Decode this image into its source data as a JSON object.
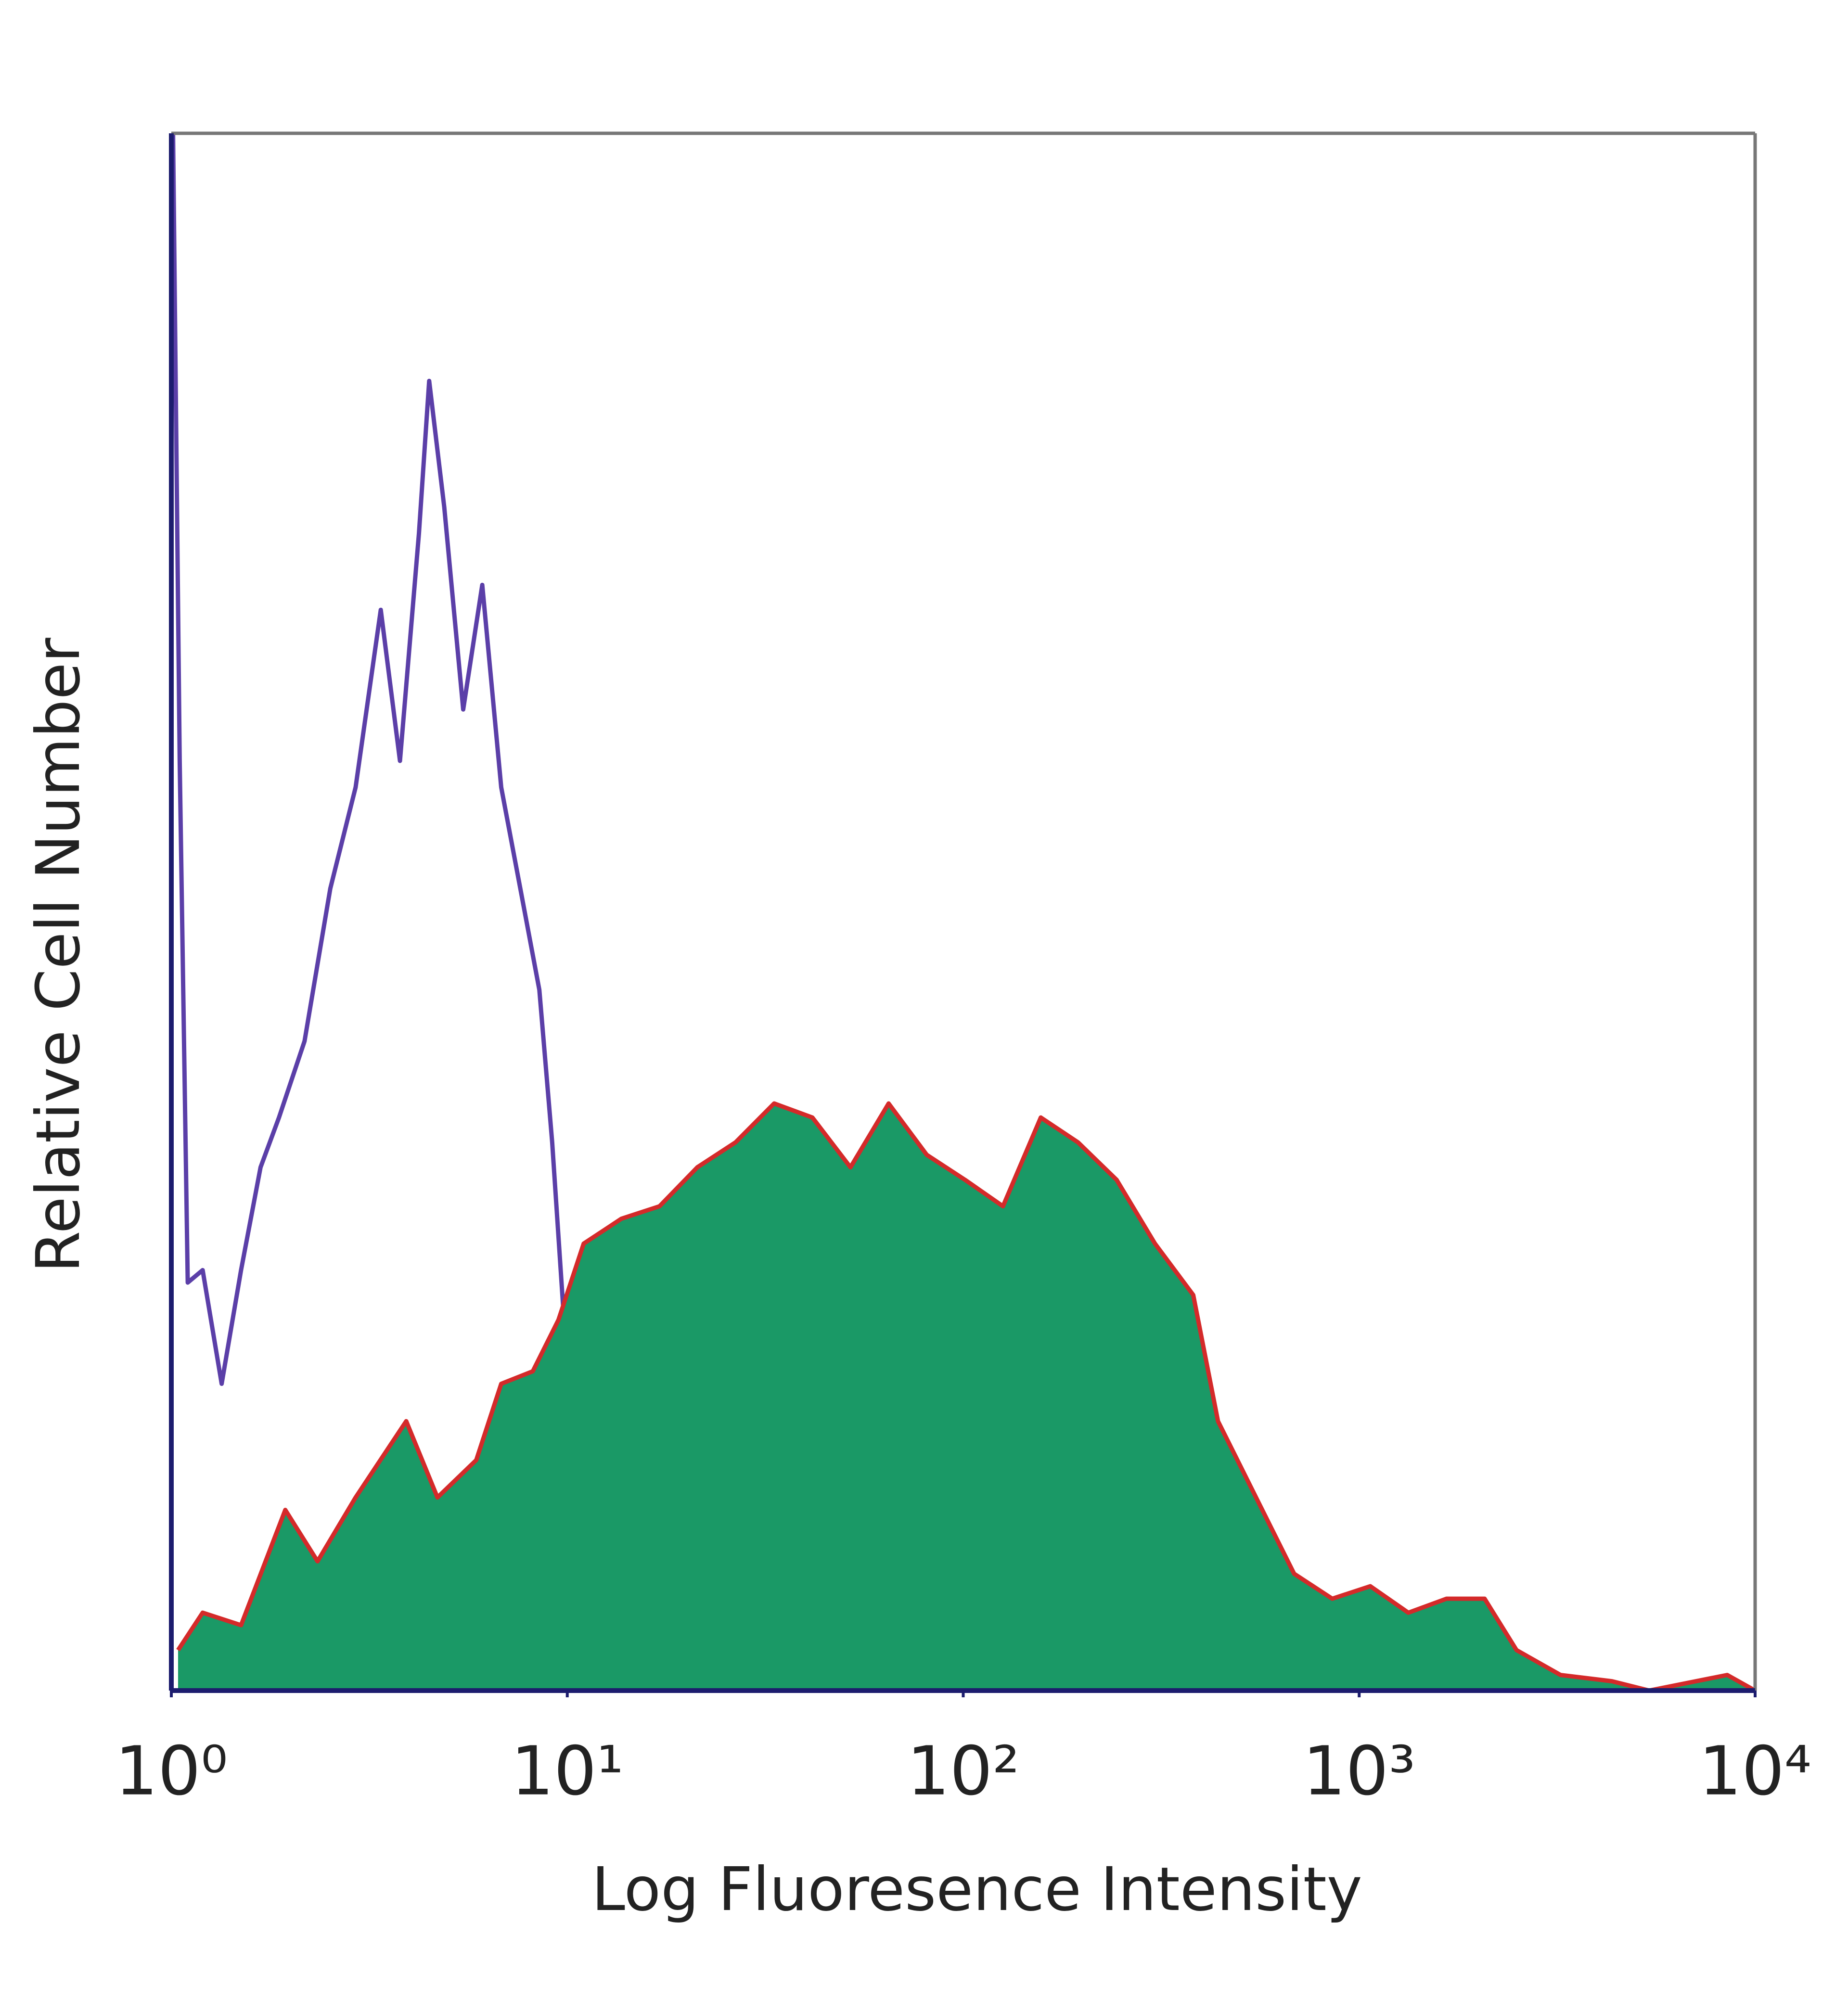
{
  "chart_data": {
    "type": "histogram-overlay",
    "x_label": "Log Fluoresence Intensity",
    "y_label": "Relative Cell Number",
    "xscale": "log",
    "xlim": [
      1,
      10000
    ],
    "xticks": [
      {
        "value": 1,
        "label": "10⁰"
      },
      {
        "value": 10,
        "label": "10¹"
      },
      {
        "value": 100,
        "label": "10²"
      },
      {
        "value": 1000,
        "label": "10³"
      },
      {
        "value": 10000,
        "label": "10⁴"
      }
    ],
    "ylim": [
      0,
      100
    ],
    "series": [
      {
        "style": "outline",
        "color": "#5b3fa8",
        "x": [
          1.01,
          1.05,
          1.1,
          1.2,
          1.34,
          1.5,
          1.68,
          1.87,
          2.17,
          2.52,
          2.92,
          3.38,
          3.78,
          4.22,
          4.48,
          4.89,
          5.46,
          6.1,
          6.81,
          7.61,
          8.5,
          9.16,
          9.86,
          11.0,
          12.3,
          13.7,
          15.3,
          17.1,
          20.6,
          23.0,
          41.6,
          48.2
        ],
        "values": [
          100,
          59.7,
          26.2,
          27,
          19.7,
          27,
          33.6,
          36.8,
          41.7,
          51.5,
          58,
          69.4,
          59.7,
          74.3,
          84.1,
          76,
          63,
          71,
          58,
          51.5,
          45,
          35.2,
          23,
          16.5,
          12.4,
          7.5,
          3.4,
          1,
          2.6,
          0,
          3,
          0
        ]
      },
      {
        "style": "filled",
        "color": "#d42a2a",
        "fill": "#1a9966",
        "x": [
          1.04,
          1.2,
          1.5,
          1.94,
          2.34,
          2.92,
          3.92,
          4.7,
          5.89,
          6.81,
          8.18,
          9.5,
          11.0,
          13.7,
          17.1,
          21.3,
          26.6,
          33.3,
          41.6,
          51.9,
          64.8,
          80.9,
          101,
          126,
          157,
          195,
          244,
          305,
          381,
          440,
          549,
          685,
          855,
          1067,
          1331,
          1662,
          2074,
          2497,
          3225,
          4350,
          5400,
          8500,
          10000
        ],
        "values": [
          2.6,
          5,
          4.2,
          11.6,
          8.3,
          12.4,
          17.3,
          12.4,
          14.8,
          19.7,
          20.5,
          23.8,
          28.7,
          30.3,
          31.1,
          33.6,
          35.2,
          37.7,
          36.8,
          33.6,
          37.7,
          34.4,
          32.8,
          31.1,
          36.8,
          35.2,
          32.8,
          28.7,
          25.4,
          17.3,
          12.4,
          7.5,
          5.9,
          6.7,
          5,
          5.9,
          5.9,
          2.6,
          1,
          0.6,
          0,
          1,
          0
        ]
      }
    ]
  }
}
